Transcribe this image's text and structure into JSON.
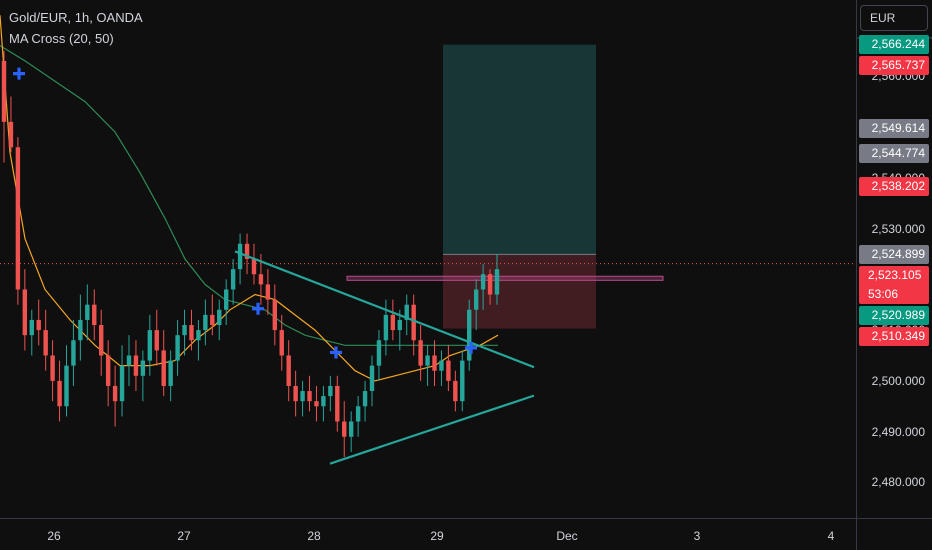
{
  "legend": {
    "title": "Gold/EUR, 1h, OANDA",
    "indicator": "MA Cross (20, 50)"
  },
  "currency": "EUR",
  "colors": {
    "up": "#26a69a",
    "down": "#ef5350",
    "ma_fast": "#f5a623",
    "ma_slow": "#2e8b57",
    "cross": "#2962ff",
    "trend": "#26a69a",
    "target_zone": "#1a3d3d",
    "stop_zone": "#4a1f24",
    "resistance": "#b84b8a"
  },
  "chart_data": {
    "type": "candlestick",
    "title": "Gold/EUR, 1h, OANDA",
    "ylim": [
      2473,
      2575
    ],
    "x_ticks": [
      "26",
      "27",
      "28",
      "29",
      "Dec",
      "3",
      "4"
    ],
    "y_ticks": [
      "2,480.000",
      "2,490.000",
      "2,500.000",
      "2,510.000",
      "2,520.000",
      "2,530.000",
      "2,540.000",
      "2,550.000",
      "2,560.000"
    ],
    "price_labels": [
      {
        "value": "2,566.244",
        "color": "#089981"
      },
      {
        "value": "2,565.737",
        "color": "#f23645"
      },
      {
        "value": "2,549.614",
        "color": "#787b86"
      },
      {
        "value": "2,544.774",
        "color": "#787b86"
      },
      {
        "value": "2,538.202",
        "color": "#f23645"
      },
      {
        "value": "2,524.899",
        "color": "#787b86"
      },
      {
        "value": "2,523.105",
        "color": "#f23645",
        "sub": "53:06"
      },
      {
        "value": "2,520.989",
        "color": "#089981"
      },
      {
        "value": "2,510.349",
        "color": "#f23645"
      }
    ],
    "last_price": 2523.1,
    "position": {
      "target": 2566.2,
      "entry": 2524.9,
      "stop": 2510.3
    },
    "resistance_zone": [
      2519.8,
      2520.6
    ],
    "candles": [
      [
        2563,
        2565,
        2543,
        2551
      ],
      [
        2551,
        2556,
        2545,
        2546
      ],
      [
        2546,
        2548,
        2515,
        2518
      ],
      [
        2518,
        2522,
        2506,
        2509
      ],
      [
        2509,
        2514,
        2505,
        2512
      ],
      [
        2512,
        2516,
        2507,
        2510
      ],
      [
        2510,
        2514,
        2502,
        2505
      ],
      [
        2505,
        2508,
        2496,
        2500
      ],
      [
        2500,
        2504,
        2492,
        2495
      ],
      [
        2495,
        2507,
        2493,
        2503
      ],
      [
        2503,
        2512,
        2499,
        2508
      ],
      [
        2508,
        2517,
        2504,
        2512
      ],
      [
        2512,
        2519,
        2508,
        2515
      ],
      [
        2515,
        2518,
        2508,
        2511
      ],
      [
        2511,
        2514,
        2501,
        2505
      ],
      [
        2505,
        2508,
        2495,
        2499
      ],
      [
        2499,
        2503,
        2491,
        2496
      ],
      [
        2496,
        2507,
        2493,
        2503
      ],
      [
        2503,
        2509,
        2499,
        2505
      ],
      [
        2505,
        2508,
        2498,
        2501
      ],
      [
        2501,
        2506,
        2496,
        2504
      ],
      [
        2504,
        2513,
        2501,
        2510
      ],
      [
        2510,
        2514,
        2503,
        2506
      ],
      [
        2506,
        2510,
        2497,
        2499
      ],
      [
        2499,
        2506,
        2496,
        2504
      ],
      [
        2504,
        2512,
        2501,
        2509
      ],
      [
        2509,
        2514,
        2505,
        2511
      ],
      [
        2511,
        2514,
        2506,
        2508
      ],
      [
        2508,
        2512,
        2504,
        2510
      ],
      [
        2510,
        2516,
        2507,
        2513
      ],
      [
        2513,
        2517,
        2509,
        2511
      ],
      [
        2511,
        2516,
        2508,
        2514
      ],
      [
        2514,
        2520,
        2511,
        2518
      ],
      [
        2518,
        2524,
        2515,
        2522
      ],
      [
        2522,
        2529,
        2519,
        2527
      ],
      [
        2527,
        2529,
        2521,
        2524
      ],
      [
        2524,
        2527,
        2519,
        2521
      ],
      [
        2521,
        2525,
        2515,
        2519
      ],
      [
        2519,
        2522,
        2513,
        2516
      ],
      [
        2516,
        2519,
        2507,
        2510
      ],
      [
        2510,
        2513,
        2502,
        2505
      ],
      [
        2505,
        2508,
        2496,
        2499
      ],
      [
        2499,
        2502,
        2493,
        2496
      ],
      [
        2496,
        2500,
        2493,
        2498
      ],
      [
        2498,
        2501,
        2494,
        2496
      ],
      [
        2496,
        2499,
        2492,
        2495
      ],
      [
        2495,
        2499,
        2492,
        2497
      ],
      [
        2497,
        2501,
        2494,
        2499
      ],
      [
        2499,
        2501,
        2490,
        2492
      ],
      [
        2492,
        2496,
        2485,
        2489
      ],
      [
        2489,
        2494,
        2486,
        2492
      ],
      [
        2492,
        2497,
        2489,
        2495
      ],
      [
        2495,
        2500,
        2492,
        2498
      ],
      [
        2498,
        2505,
        2495,
        2503
      ],
      [
        2503,
        2510,
        2500,
        2508
      ],
      [
        2508,
        2516,
        2505,
        2513
      ],
      [
        2513,
        2516,
        2508,
        2510
      ],
      [
        2510,
        2514,
        2506,
        2512
      ],
      [
        2512,
        2517,
        2509,
        2515
      ],
      [
        2515,
        2517,
        2505,
        2508
      ],
      [
        2508,
        2511,
        2500,
        2503
      ],
      [
        2503,
        2507,
        2499,
        2505
      ],
      [
        2505,
        2508,
        2499,
        2502
      ],
      [
        2502,
        2506,
        2499,
        2504
      ],
      [
        2504,
        2507,
        2498,
        2500
      ],
      [
        2500,
        2502,
        2494,
        2496
      ],
      [
        2496,
        2506,
        2494,
        2504
      ],
      [
        2504,
        2516,
        2502,
        2514
      ],
      [
        2514,
        2520,
        2510,
        2518
      ],
      [
        2518,
        2523,
        2514,
        2521
      ],
      [
        2521,
        2522,
        2515,
        2517
      ],
      [
        2517,
        2525,
        2515,
        2522
      ]
    ],
    "ma_fast": [
      [
        0,
        2572
      ],
      [
        10,
        2545
      ],
      [
        25,
        2528
      ],
      [
        45,
        2518
      ],
      [
        70,
        2512
      ],
      [
        95,
        2507
      ],
      [
        120,
        2503
      ],
      [
        150,
        2503
      ],
      [
        175,
        2504
      ],
      [
        195,
        2508
      ],
      [
        215,
        2511
      ],
      [
        230,
        2514
      ],
      [
        255,
        2517
      ],
      [
        275,
        2516
      ],
      [
        295,
        2513
      ],
      [
        315,
        2510
      ],
      [
        335,
        2506
      ],
      [
        355,
        2502
      ],
      [
        375,
        2500
      ],
      [
        395,
        2501
      ],
      [
        415,
        2502
      ],
      [
        435,
        2503
      ],
      [
        450,
        2505
      ],
      [
        465,
        2506
      ],
      [
        480,
        2507
      ],
      [
        498,
        2509
      ]
    ],
    "ma_slow": [
      [
        0,
        2566
      ],
      [
        25,
        2563
      ],
      [
        55,
        2559
      ],
      [
        85,
        2555
      ],
      [
        115,
        2549
      ],
      [
        140,
        2541
      ],
      [
        165,
        2532
      ],
      [
        185,
        2524
      ],
      [
        205,
        2519
      ],
      [
        225,
        2516
      ],
      [
        245,
        2515
      ],
      [
        265,
        2514
      ],
      [
        285,
        2511
      ],
      [
        305,
        2509
      ],
      [
        325,
        2508
      ],
      [
        345,
        2507
      ],
      [
        370,
        2507
      ],
      [
        395,
        2507
      ],
      [
        420,
        2507
      ],
      [
        445,
        2507
      ],
      [
        470,
        2507
      ],
      [
        498,
        2507
      ]
    ],
    "crosses": [
      [
        19,
        2560.5
      ],
      [
        258,
        2514.2
      ],
      [
        336,
        2505.6
      ],
      [
        471,
        2506.5
      ]
    ],
    "triangle_upper": [
      [
        235,
        2525.5
      ],
      [
        534,
        2502.7
      ]
    ],
    "triangle_lower": [
      [
        330,
        2483.7
      ],
      [
        534,
        2497.1
      ]
    ]
  }
}
